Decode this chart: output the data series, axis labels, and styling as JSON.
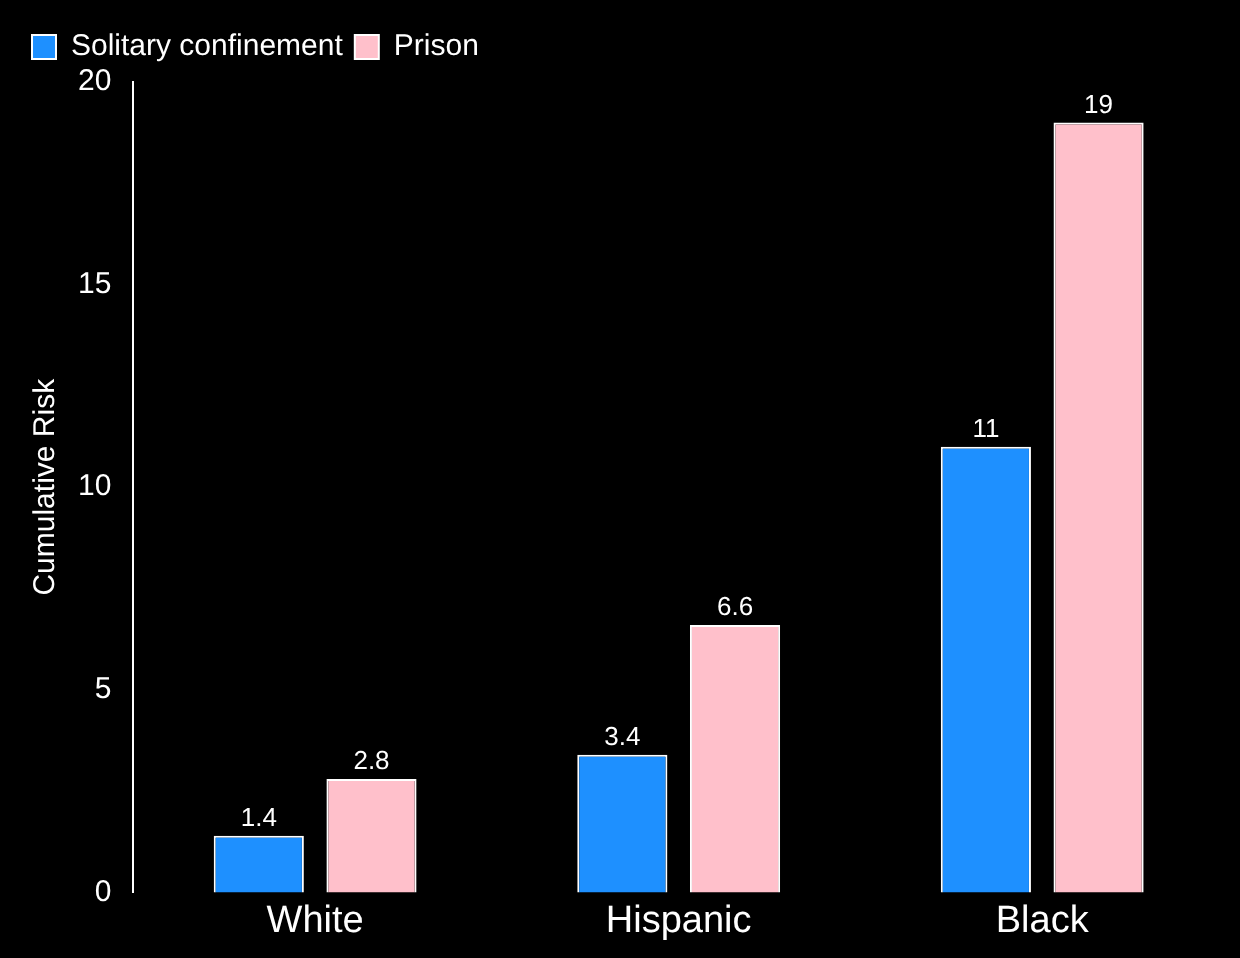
{
  "chart_data": {
    "type": "bar",
    "ylabel": "Cumulative Risk",
    "categories": [
      "White",
      "Hispanic",
      "Black"
    ],
    "series": [
      {
        "name": "Solitary confinement",
        "color": "#1e90ff",
        "values": [
          1.4,
          3.4,
          11
        ]
      },
      {
        "name": "Prison",
        "color": "#ffc0cb",
        "values": [
          2.8,
          6.6,
          19
        ]
      }
    ],
    "ylim": [
      0,
      20
    ],
    "yticks": [
      0,
      5,
      10,
      15,
      20
    ],
    "grid": false,
    "legend": "top left",
    "data_labels": true
  }
}
